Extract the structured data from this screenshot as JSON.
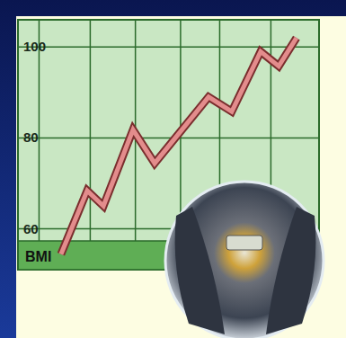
{
  "chart_data": {
    "type": "line",
    "xlabel": "BMI",
    "x": [
      14.3,
      23,
      28.4,
      38.2,
      45.4,
      63.3,
      71,
      80.6,
      86.6,
      92.5
    ],
    "values": [
      54.4,
      68.4,
      65,
      81.8,
      74.4,
      89,
      85.8,
      99,
      95.8,
      102
    ],
    "color": "#e38c8c",
    "xlim": [
      0,
      100
    ],
    "xticks": [
      7,
      24,
      39,
      54,
      67,
      84
    ],
    "ylim": [
      51,
      106
    ],
    "yticks": [
      60,
      80,
      100
    ],
    "grid": true,
    "tick_labels": "y"
  }
}
